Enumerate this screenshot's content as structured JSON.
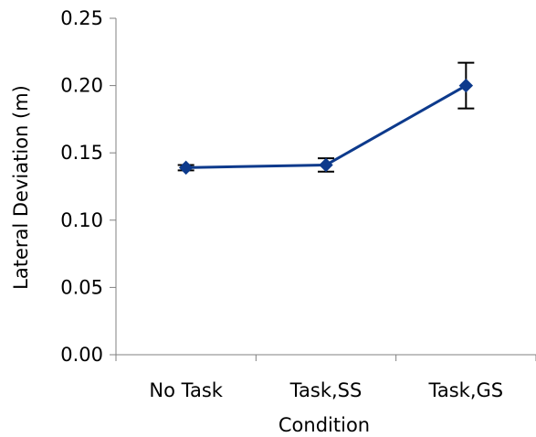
{
  "chart_data": {
    "type": "line",
    "title": "",
    "xlabel": "Condition",
    "ylabel": "Lateral Deviation (m)",
    "categories": [
      "No Task",
      "Task,SS",
      "Task,GS"
    ],
    "series": [
      {
        "values": [
          0.139,
          0.141,
          0.2
        ],
        "error": [
          0.002,
          0.005,
          0.017
        ],
        "color": "#0d3a8c",
        "marker": "diamond"
      }
    ],
    "ylim": [
      0.0,
      0.25
    ],
    "yticks": [
      "0.00",
      "0.05",
      "0.10",
      "0.15",
      "0.20",
      "0.25"
    ],
    "ytick_values": [
      0.0,
      0.05,
      0.1,
      0.15,
      0.2,
      0.25
    ],
    "grid": false,
    "legend": "none"
  }
}
